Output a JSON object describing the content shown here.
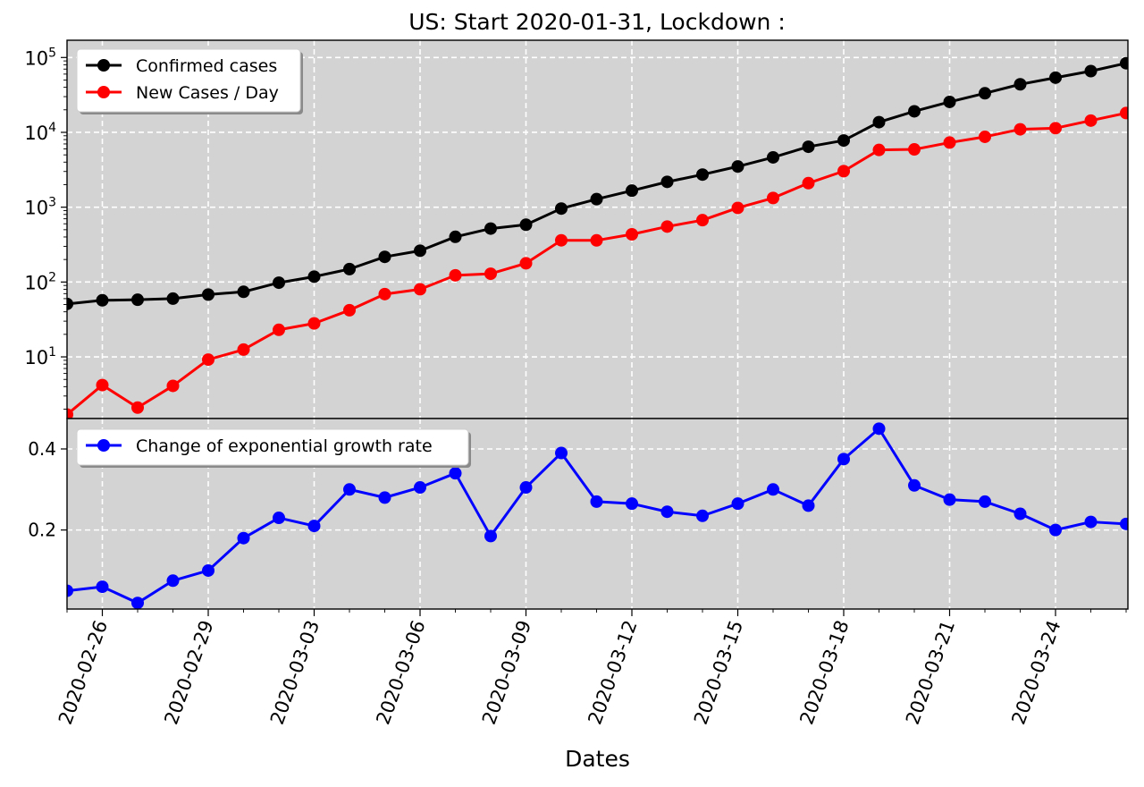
{
  "chart_data": [
    {
      "type": "line",
      "title": "US: Start 2020-01-31, Lockdown :",
      "xlabel": "Dates",
      "ylabel": "",
      "yscale": "log",
      "ylim": [
        1.5,
        170000
      ],
      "grid": true,
      "legend": "top-left",
      "x": [
        "2020-02-25",
        "2020-02-26",
        "2020-02-27",
        "2020-02-28",
        "2020-02-29",
        "2020-03-01",
        "2020-03-02",
        "2020-03-03",
        "2020-03-04",
        "2020-03-05",
        "2020-03-06",
        "2020-03-07",
        "2020-03-08",
        "2020-03-09",
        "2020-03-10",
        "2020-03-11",
        "2020-03-12",
        "2020-03-13",
        "2020-03-14",
        "2020-03-15",
        "2020-03-16",
        "2020-03-17",
        "2020-03-18",
        "2020-03-19",
        "2020-03-20",
        "2020-03-21",
        "2020-03-22",
        "2020-03-23",
        "2020-03-24",
        "2020-03-25",
        "2020-03-26"
      ],
      "y_ticks": [
        {
          "value": 10,
          "base": "10",
          "exp": "1"
        },
        {
          "value": 100,
          "base": "10",
          "exp": "2"
        },
        {
          "value": 1000,
          "base": "10",
          "exp": "3"
        },
        {
          "value": 10000,
          "base": "10",
          "exp": "4"
        },
        {
          "value": 100000,
          "base": "10",
          "exp": "5"
        }
      ],
      "series": [
        {
          "name": "Confirmed cases",
          "color": "#000000",
          "values": [
            51,
            57,
            58,
            60,
            68,
            74,
            98,
            118,
            149,
            217,
            262,
            402,
            518,
            583,
            959,
            1281,
            1663,
            2179,
            2726,
            3499,
            4632,
            6421,
            7786,
            13680,
            19101,
            25493,
            33276,
            43847,
            53740,
            65778,
            83836
          ]
        },
        {
          "name": "New Cases / Day",
          "color": "#ff0000",
          "values": [
            1.7,
            4.2,
            2.1,
            4.1,
            9.2,
            12.5,
            23,
            28,
            42,
            69,
            80,
            123,
            129,
            178,
            361,
            360,
            434,
            551,
            671,
            978,
            1327,
            2094,
            3029,
            5819,
            5916,
            7298,
            8719,
            10981,
            11361,
            14360,
            18093
          ]
        }
      ]
    },
    {
      "type": "line",
      "xlabel": "Dates",
      "ylabel": "",
      "ylim": [
        0.005,
        0.475
      ],
      "grid": true,
      "legend": "top-left",
      "y_ticks": [
        "0.2",
        "0.4"
      ],
      "series": [
        {
          "name": "Change of exponential growth rate",
          "color": "#0000ff",
          "values": [
            0.05,
            0.06,
            0.02,
            0.075,
            0.1,
            0.18,
            0.23,
            0.21,
            0.3,
            0.28,
            0.305,
            0.34,
            0.185,
            0.305,
            0.39,
            0.27,
            0.265,
            0.245,
            0.235,
            0.265,
            0.3,
            0.26,
            0.375,
            0.45,
            0.31,
            0.275,
            0.27,
            0.24,
            0.2,
            0.22,
            0.215
          ]
        }
      ]
    }
  ],
  "x_axis": {
    "tick_labels": [
      "2020-02-26",
      "2020-02-29",
      "2020-03-03",
      "2020-03-06",
      "2020-03-09",
      "2020-03-12",
      "2020-03-15",
      "2020-03-18",
      "2020-03-21",
      "2020-03-24"
    ]
  }
}
